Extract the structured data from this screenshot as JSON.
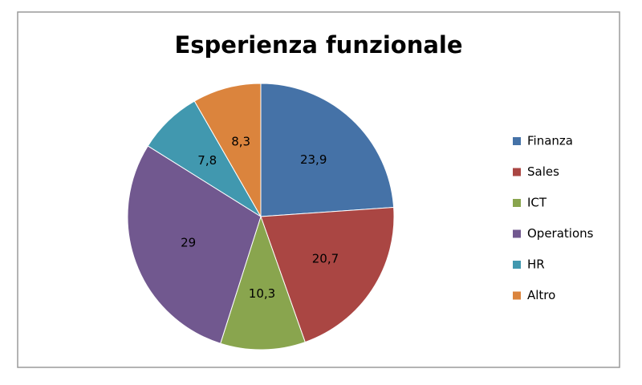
{
  "chart_data": {
    "type": "pie",
    "title": "Esperienza funzionale",
    "categories": [
      "Finanza",
      "Sales",
      "ICT",
      "Operations",
      "HR",
      "Altro"
    ],
    "values": [
      23.9,
      20.7,
      10.3,
      29,
      7.8,
      8.3
    ],
    "value_labels": [
      "23,9",
      "20,7",
      "10,3",
      "29",
      "7,8",
      "8,3"
    ],
    "colors": [
      "#4572a7",
      "#aa4643",
      "#89a54e",
      "#71588f",
      "#4198af",
      "#db843d"
    ],
    "legend": "right"
  }
}
